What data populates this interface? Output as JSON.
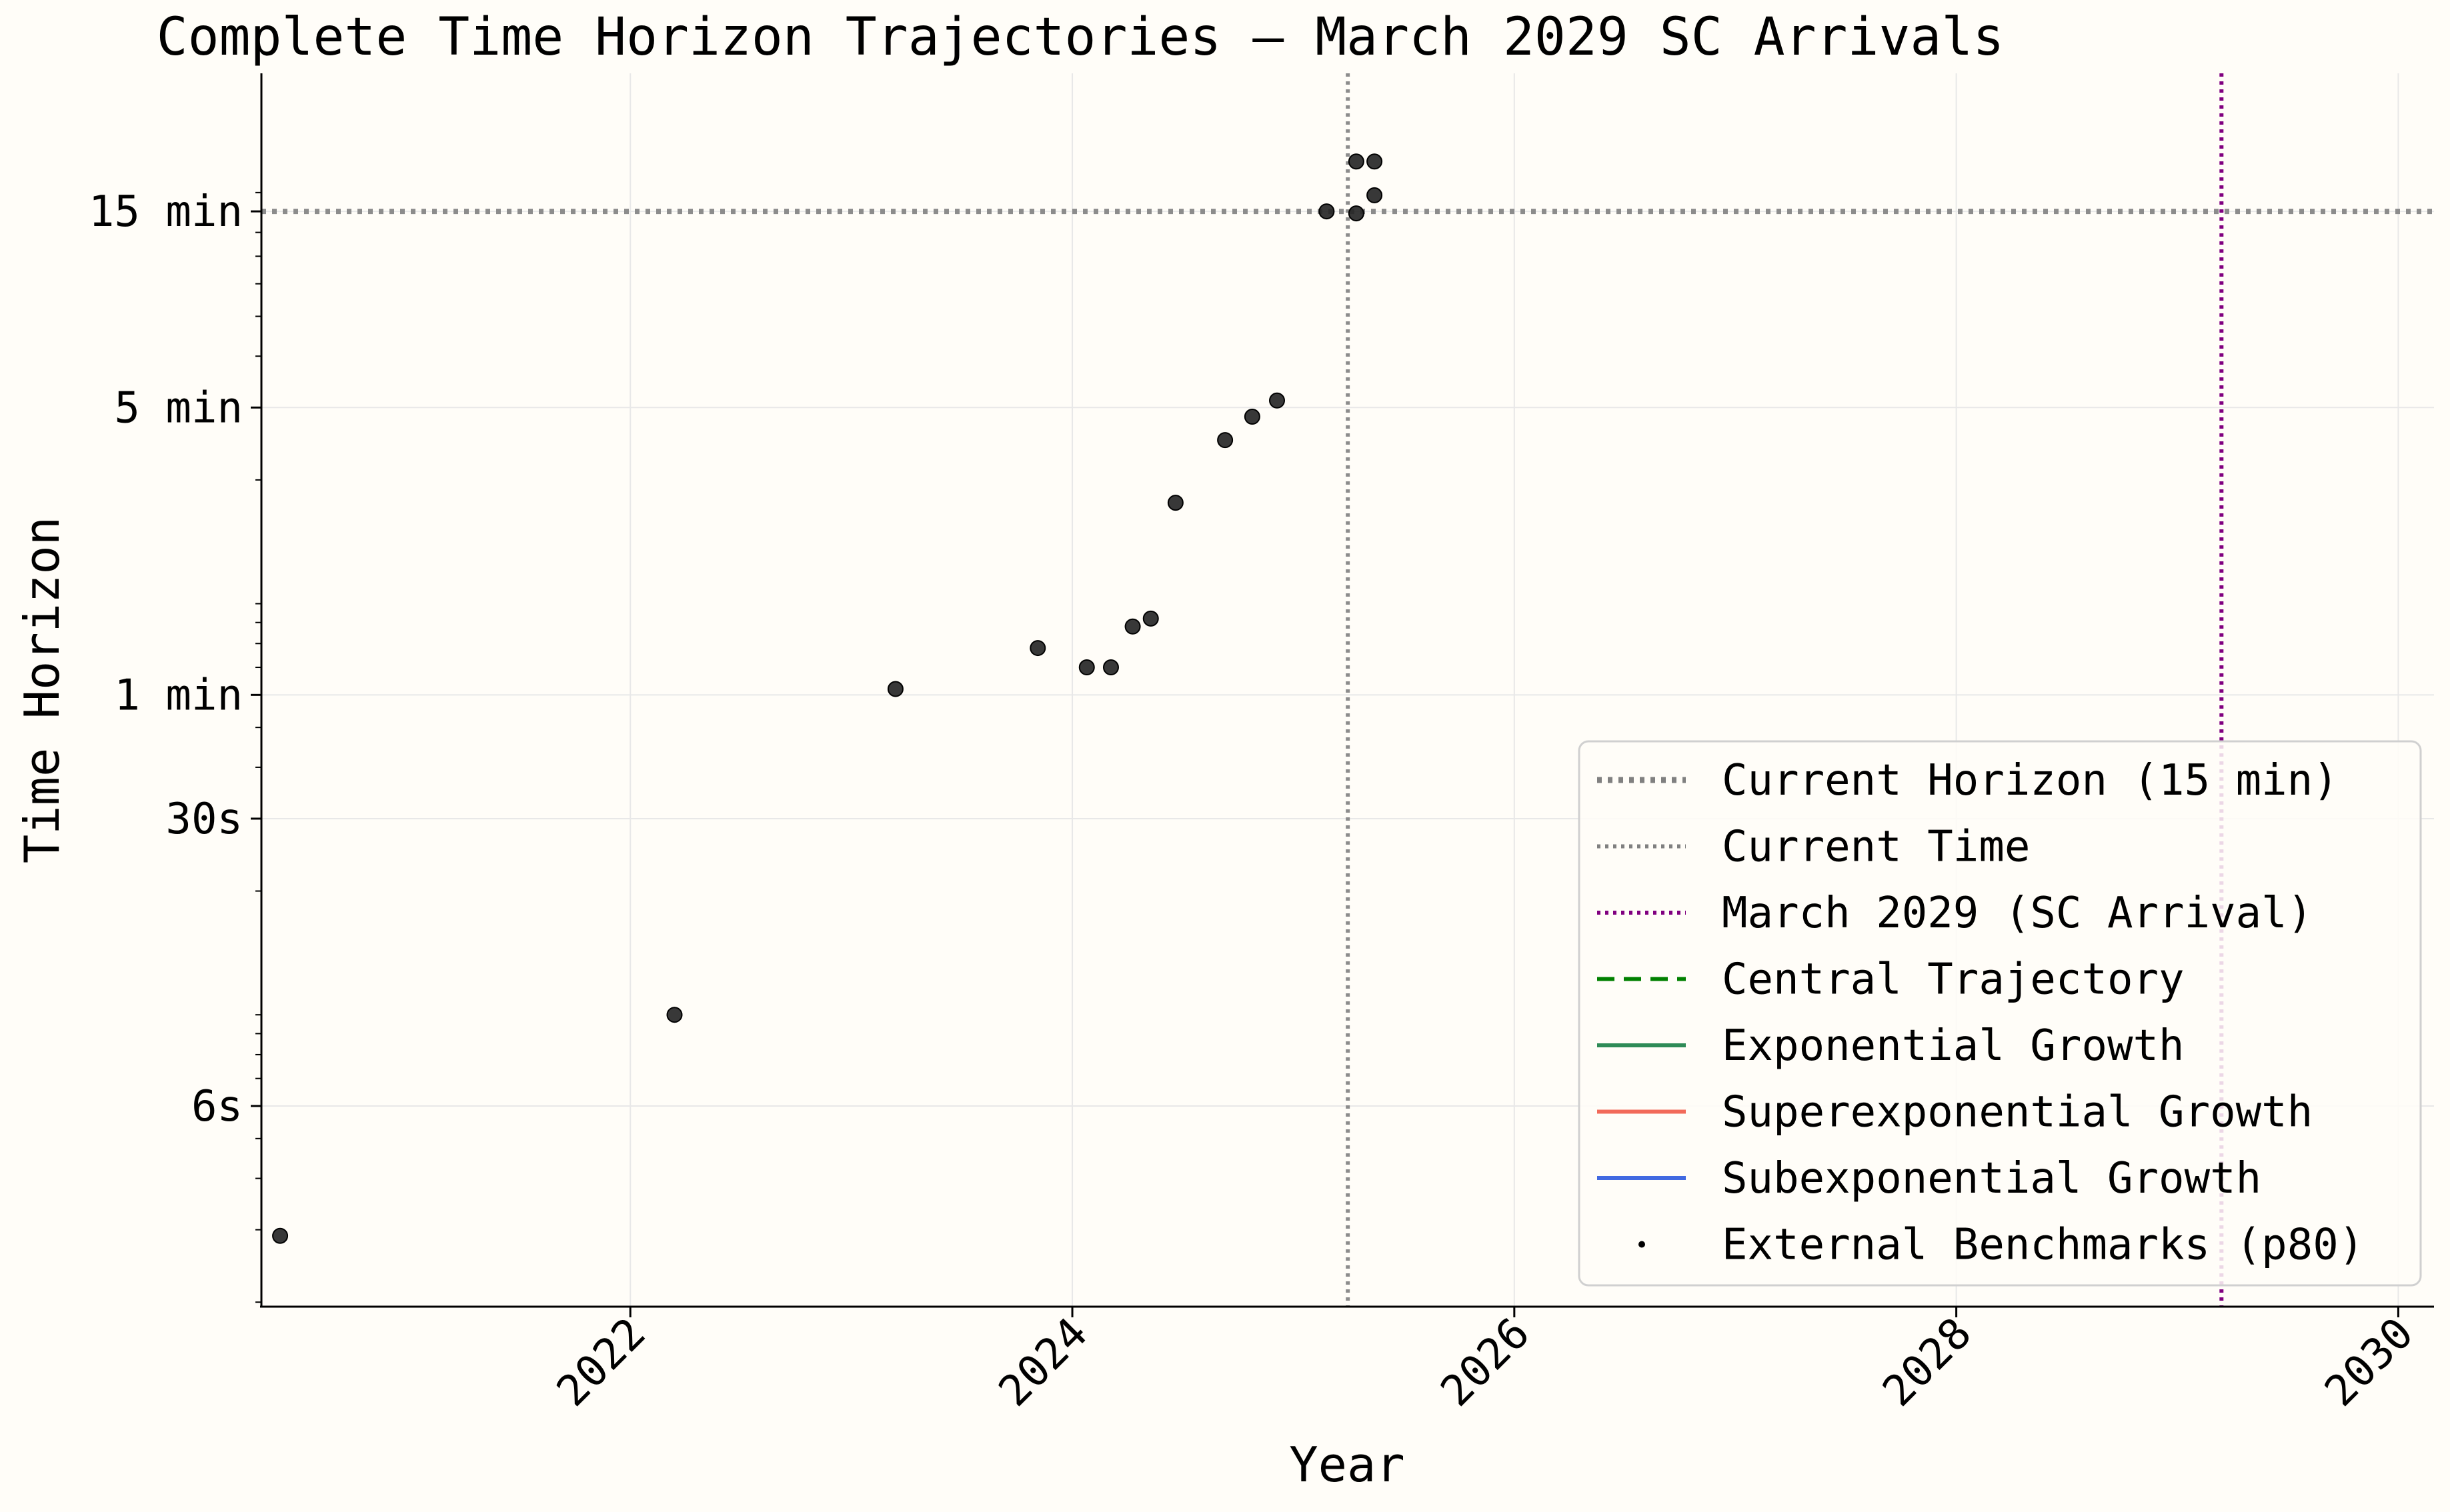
{
  "chart_data": {
    "type": "scatter",
    "title": "Complete Time Horizon Trajectories – March 2029 SC Arrivals",
    "xlabel": "Year",
    "ylabel": "Time Horizon",
    "x_scale": "time",
    "y_scale": "log",
    "xlim": [
      "2020-05-01",
      "2030-03-01"
    ],
    "ylim_seconds": [
      1.95,
      1950
    ],
    "grid": true,
    "legend_position": "lower-right",
    "x_ticks": [
      {
        "value": "2022-01-01",
        "label": "2022"
      },
      {
        "value": "2024-01-01",
        "label": "2024"
      },
      {
        "value": "2026-01-01",
        "label": "2026"
      },
      {
        "value": "2028-01-01",
        "label": "2028"
      },
      {
        "value": "2030-01-01",
        "label": "2030"
      }
    ],
    "y_ticks": [
      {
        "value_seconds": 6,
        "label": "6s"
      },
      {
        "value_seconds": 30,
        "label": "30s"
      },
      {
        "value_seconds": 60,
        "label": "1 min"
      },
      {
        "value_seconds": 300,
        "label": "5 min"
      },
      {
        "value_seconds": 900,
        "label": "15 min"
      }
    ],
    "reference_lines": [
      {
        "orientation": "horizontal",
        "value_seconds": 900,
        "name": "Current Horizon (15 min)",
        "color": "#8c8c8c",
        "style": "dotted-thick"
      },
      {
        "orientation": "vertical",
        "value": "2025-04-01",
        "name": "Current Time",
        "color": "#8c8c8c",
        "style": "dotted"
      },
      {
        "orientation": "vertical",
        "value": "2029-03-15",
        "name": "March 2029 (SC Arrival)",
        "color": "#800080",
        "style": "dotted"
      }
    ],
    "legend": [
      {
        "label": "Current Horizon (15 min)",
        "color": "#808080",
        "style": "dotted-thick"
      },
      {
        "label": "Current Time",
        "color": "#808080",
        "style": "dotted"
      },
      {
        "label": "March 2029 (SC Arrival)",
        "color": "#800080",
        "style": "dotted"
      },
      {
        "label": "Central Trajectory",
        "color": "#008000",
        "style": "dashed"
      },
      {
        "label": "Exponential Growth",
        "color": "#2e8b57",
        "style": "solid"
      },
      {
        "label": "Superexponential Growth",
        "color": "#f26a5a",
        "style": "solid"
      },
      {
        "label": "Subexponential Growth",
        "color": "#4169e1",
        "style": "solid"
      },
      {
        "label": "External Benchmarks (p80)",
        "color": "#000000",
        "style": "marker"
      }
    ],
    "series": [
      {
        "name": "External Benchmarks (p80)",
        "color": "#222222",
        "points": [
          {
            "x": "2020-06-01",
            "y_seconds": 2.9
          },
          {
            "x": "2022-03-15",
            "y_seconds": 10
          },
          {
            "x": "2023-03-15",
            "y_seconds": 62
          },
          {
            "x": "2023-11-05",
            "y_seconds": 78
          },
          {
            "x": "2024-01-25",
            "y_seconds": 70
          },
          {
            "x": "2024-03-05",
            "y_seconds": 70
          },
          {
            "x": "2024-04-10",
            "y_seconds": 88
          },
          {
            "x": "2024-05-10",
            "y_seconds": 92
          },
          {
            "x": "2024-06-20",
            "y_seconds": 176
          },
          {
            "x": "2024-09-10",
            "y_seconds": 250
          },
          {
            "x": "2024-10-25",
            "y_seconds": 285
          },
          {
            "x": "2024-12-05",
            "y_seconds": 312
          },
          {
            "x": "2025-02-25",
            "y_seconds": 900
          },
          {
            "x": "2025-04-15",
            "y_seconds": 1190
          },
          {
            "x": "2025-04-15",
            "y_seconds": 890
          },
          {
            "x": "2025-05-15",
            "y_seconds": 1190
          },
          {
            "x": "2025-05-15",
            "y_seconds": 985
          }
        ]
      }
    ]
  }
}
